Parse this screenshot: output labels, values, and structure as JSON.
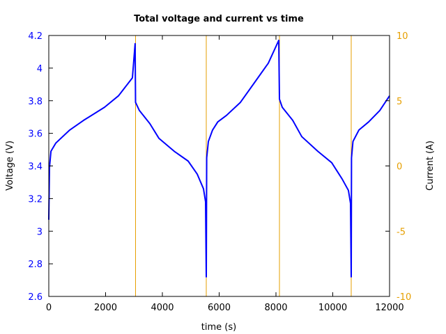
{
  "chart_data": {
    "type": "line",
    "title": "Total voltage and current vs time",
    "xlabel": "time (s)",
    "ylabel": "Voltage (V)",
    "y2label": "Current (A)",
    "xlim": [
      0,
      12000
    ],
    "ylim": [
      2.6,
      4.2
    ],
    "y2lim": [
      -10,
      10
    ],
    "x_ticks": [
      "0",
      "2000",
      "4000",
      "6000",
      "8000",
      "10000",
      "12000"
    ],
    "y_ticks": [
      "2.6",
      "2.8",
      "3",
      "3.2",
      "3.4",
      "3.6",
      "3.8",
      "4",
      "4.2"
    ],
    "y2_ticks": [
      "-10",
      "-5",
      "0",
      "5",
      "10"
    ],
    "grid": false,
    "legend": null,
    "colors": {
      "voltage": "#0000ff",
      "current": "#e69f00",
      "axes": "#000000"
    },
    "series": [
      {
        "name": "Voltage",
        "axis": "left",
        "color": "#0000ff",
        "points": [
          [
            0,
            3.07
          ],
          [
            25,
            3.39
          ],
          [
            75,
            3.49
          ],
          [
            245,
            3.54
          ],
          [
            736,
            3.62
          ],
          [
            1227,
            3.68
          ],
          [
            1963,
            3.76
          ],
          [
            2454,
            3.83
          ],
          [
            2945,
            3.94
          ],
          [
            3040,
            4.15
          ],
          [
            3055,
            3.79
          ],
          [
            3190,
            3.74
          ],
          [
            3558,
            3.66
          ],
          [
            3877,
            3.57
          ],
          [
            4417,
            3.49
          ],
          [
            4908,
            3.43
          ],
          [
            5227,
            3.35
          ],
          [
            5448,
            3.26
          ],
          [
            5521,
            3.18
          ],
          [
            5546,
            2.72
          ],
          [
            5560,
            3.45
          ],
          [
            5620,
            3.55
          ],
          [
            5767,
            3.62
          ],
          [
            5950,
            3.67
          ],
          [
            6258,
            3.71
          ],
          [
            6748,
            3.79
          ],
          [
            7239,
            3.91
          ],
          [
            7730,
            4.03
          ],
          [
            8098,
            4.17
          ],
          [
            8123,
            3.81
          ],
          [
            8221,
            3.76
          ],
          [
            8589,
            3.68
          ],
          [
            8908,
            3.58
          ],
          [
            9472,
            3.49
          ],
          [
            9963,
            3.42
          ],
          [
            10331,
            3.32
          ],
          [
            10552,
            3.25
          ],
          [
            10626,
            3.17
          ],
          [
            10650,
            2.72
          ],
          [
            10660,
            3.45
          ],
          [
            10712,
            3.55
          ],
          [
            10920,
            3.62
          ],
          [
            11264,
            3.67
          ],
          [
            11656,
            3.74
          ],
          [
            12000,
            3.83
          ]
        ]
      },
      {
        "name": "Current",
        "axis": "right",
        "color": "#e69f00",
        "note": "off-scale between switches; visible only as vertical transitions",
        "switch_times": [
          3055,
          5546,
          8123,
          10650
        ]
      }
    ]
  }
}
